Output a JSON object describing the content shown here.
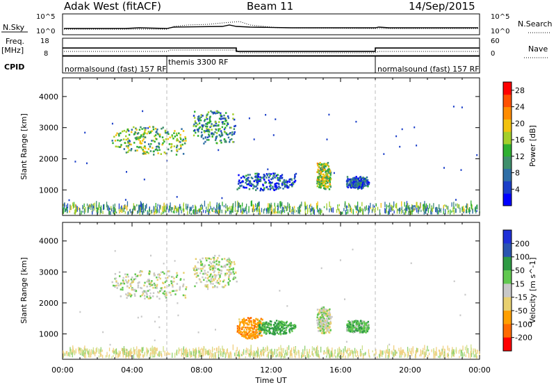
{
  "header": {
    "station": "Adak West (fitACF)",
    "beam": "Beam 11",
    "date": "14/Sep/2015"
  },
  "params": {
    "nsky_label": "N.Sky",
    "nsky_ticks": [
      "10^5",
      "10^0"
    ],
    "nsearch_label": "N.Search",
    "freq_label": "Freq.",
    "freq_unit": "[MHz]",
    "freq_ticks": [
      "18",
      "8"
    ],
    "nave_ticks": [
      "60",
      "0"
    ],
    "nave_label": "Nave",
    "cpid_label": "CPID",
    "cpid_segments": [
      {
        "start_h": 0,
        "end_h": 6,
        "label": "normalsound (fast) 157 RF"
      },
      {
        "start_h": 6,
        "end_h": 18,
        "label": "themis 3300 RF"
      },
      {
        "start_h": 18,
        "end_h": 24,
        "label": "normalsound (fast) 157 RF"
      }
    ],
    "freq_steps": [
      {
        "start_h": 0,
        "end_h": 10,
        "mhz": 12.5
      },
      {
        "start_h": 10,
        "end_h": 18,
        "mhz": 10.3
      },
      {
        "start_h": 18,
        "end_h": 24,
        "mhz": 12.5
      }
    ]
  },
  "colors": {
    "power": [
      "#0000ff",
      "#1a3ec8",
      "#2f6ea6",
      "#3f8f6c",
      "#2eb030",
      "#a4cf2a",
      "#f2c20f",
      "#ff8c00",
      "#ff5000",
      "#ff0000"
    ],
    "velocity": [
      "#ff0000",
      "#ff6a00",
      "#ff9f00",
      "#e8d070",
      "#c8c8c8",
      "#62c850",
      "#2e9a44",
      "#2a55b0",
      "#1f30d8"
    ]
  },
  "chart_data": [
    {
      "type": "heatmap",
      "name": "power",
      "xlabel": "Time UT",
      "ylabel": "Slant Range [km]",
      "xlim": [
        0,
        24
      ],
      "ylim": [
        180,
        4600
      ],
      "yticks": [
        1000,
        2000,
        3000,
        4000
      ],
      "colorbar_label": "Power [dB]",
      "colorbar_ticks": [
        4,
        8,
        12,
        16,
        20,
        24,
        28
      ],
      "colorbar_range": [
        0,
        30
      ],
      "echo_regions": [
        {
          "t0": 2.8,
          "t1": 7.1,
          "r0": 2100,
          "r1": 3000,
          "value": 14
        },
        {
          "t0": 7.5,
          "t1": 10.0,
          "r0": 2450,
          "r1": 3500,
          "value": 10
        },
        {
          "t0": 10.0,
          "t1": 13.4,
          "r0": 950,
          "r1": 1500,
          "value": 6
        },
        {
          "t0": 14.6,
          "t1": 15.4,
          "r0": 980,
          "r1": 1850,
          "value": 16
        },
        {
          "t0": 16.3,
          "t1": 17.6,
          "r0": 1000,
          "r1": 1400,
          "value": 6
        },
        {
          "t0": 0,
          "t1": 24,
          "r0": 200,
          "r1": 480,
          "value": 12
        }
      ]
    },
    {
      "type": "heatmap",
      "name": "velocity",
      "xlabel": "Time UT",
      "ylabel": "Slant Range [km]",
      "xlim": [
        0,
        24
      ],
      "ylim": [
        180,
        4600
      ],
      "yticks": [
        1000,
        2000,
        3000,
        4000
      ],
      "xticks": [
        "00:00",
        "04:00",
        "08:00",
        "12:00",
        "16:00",
        "20:00",
        "00:00"
      ],
      "colorbar_label": "Velocity [m s^-1]",
      "colorbar_ticks": [
        "200",
        "100",
        "50",
        "15",
        "-15",
        "-50",
        "-100",
        "-200"
      ],
      "echo_regions": [
        {
          "t0": 2.8,
          "t1": 7.1,
          "r0": 2100,
          "r1": 3000,
          "value": 0
        },
        {
          "t0": 7.5,
          "t1": 10.0,
          "r0": 2450,
          "r1": 3500,
          "value": 0
        },
        {
          "t0": 10.0,
          "t1": 11.5,
          "r0": 800,
          "r1": 1500,
          "value": -80
        },
        {
          "t0": 11.2,
          "t1": 13.4,
          "r0": 950,
          "r1": 1400,
          "value": 60
        },
        {
          "t0": 14.6,
          "t1": 15.4,
          "r0": 980,
          "r1": 1850,
          "value": 0
        },
        {
          "t0": 16.3,
          "t1": 17.6,
          "r0": 1000,
          "r1": 1400,
          "value": 40
        },
        {
          "t0": 0,
          "t1": 24,
          "r0": 200,
          "r1": 480,
          "value": 20
        }
      ]
    }
  ]
}
